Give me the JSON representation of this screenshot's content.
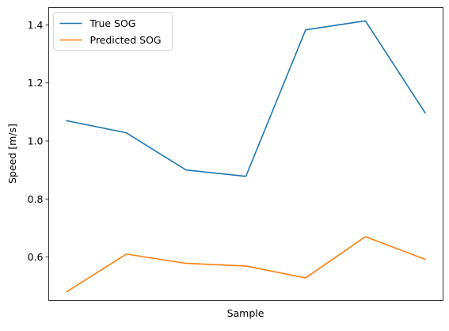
{
  "chart_data": {
    "type": "line",
    "title": "",
    "xlabel": "Sample",
    "ylabel": "Speed [m/s]",
    "x": [
      0,
      1,
      2,
      3,
      4,
      5,
      6
    ],
    "xticks_visible": false,
    "ylim": [
      0.45,
      1.46
    ],
    "xlim": [
      -0.3,
      6.3
    ],
    "yticks": [
      "0.6",
      "0.8",
      "1.0",
      "1.2",
      "1.4"
    ],
    "ytick_values": [
      0.6,
      0.8,
      1.0,
      1.2,
      1.4
    ],
    "grid": false,
    "legend_position": "upper-left",
    "series": [
      {
        "name": "True SOG",
        "color": "#1f77b4",
        "values": [
          1.07,
          1.028,
          0.9,
          0.878,
          1.383,
          1.414,
          1.097
        ]
      },
      {
        "name": "Predicted SOG",
        "color": "#ff7f0e",
        "values": [
          0.48,
          0.61,
          0.578,
          0.569,
          0.528,
          0.67,
          0.592
        ]
      }
    ]
  }
}
